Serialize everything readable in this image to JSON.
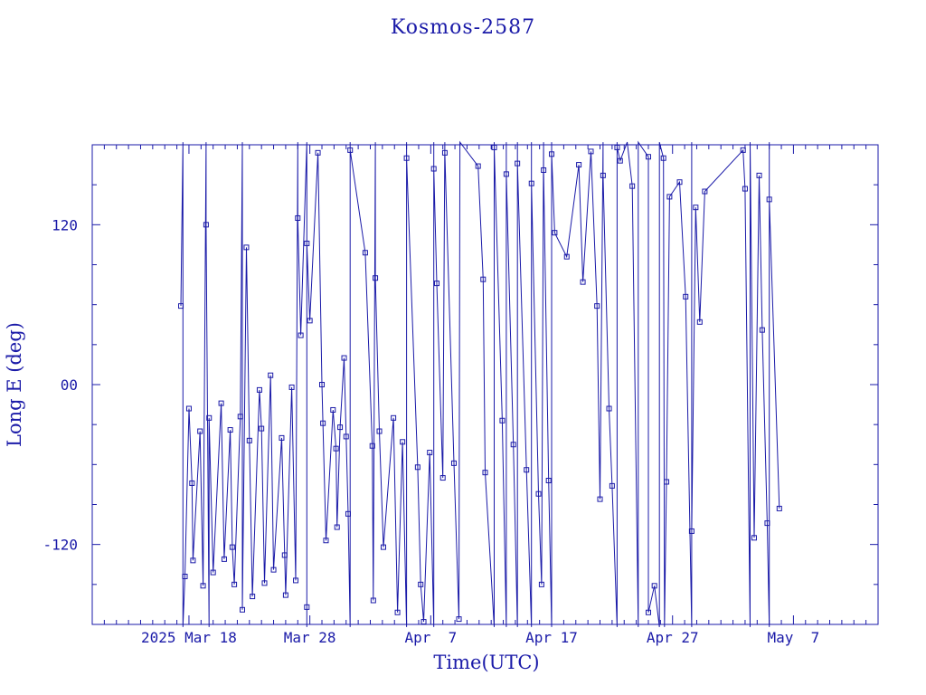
{
  "chart_data": {
    "type": "line",
    "title": "Kosmos-2587",
    "xlabel": "Time(UTC)",
    "ylabel": "Long E (deg)",
    "xlim": [
      "2025-03-10",
      "2025-05-14"
    ],
    "ylim": [
      -180,
      180
    ],
    "grid": false,
    "line_color": "#1a1aa8",
    "x_tick_labels": [
      {
        "date": "2025-03-18",
        "label": "2025 Mar 18"
      },
      {
        "date": "2025-03-28",
        "label": "Mar 28"
      },
      {
        "date": "2025-04-07",
        "label": "Apr  7"
      },
      {
        "date": "2025-04-17",
        "label": "Apr 17"
      },
      {
        "date": "2025-04-27",
        "label": "Apr 27"
      },
      {
        "date": "2025-05-07",
        "label": "May  7"
      }
    ],
    "y_tick_labels": [
      {
        "value": 120,
        "label": "120"
      },
      {
        "value": 0,
        "label": "00"
      },
      {
        "value": -120,
        "label": "-120"
      }
    ],
    "series": [
      {
        "points": [
          [
            "2025-03-17 08:00",
            59
          ],
          [
            "2025-03-17 12:00",
            182
          ],
          [
            "2025-03-17 12:00",
            -182
          ],
          [
            "2025-03-17 16:00",
            -144
          ],
          [
            "2025-03-18 00:00",
            -18
          ],
          [
            "2025-03-18 06:00",
            -74
          ],
          [
            "2025-03-18 08:00",
            -132
          ],
          [
            "2025-03-18 22:00",
            -35
          ],
          [
            "2025-03-19 04:00",
            -151
          ],
          [
            "2025-03-19 10:00",
            182
          ],
          [
            "2025-03-19 10:00",
            120
          ],
          [
            "2025-03-19 16:00",
            -182
          ],
          [
            "2025-03-19 16:00",
            -25
          ],
          [
            "2025-03-20 00:00",
            -141
          ],
          [
            "2025-03-20 16:00",
            -14
          ],
          [
            "2025-03-20 22:00",
            -131
          ],
          [
            "2025-03-21 10:00",
            -34
          ],
          [
            "2025-03-21 14:00",
            -122
          ],
          [
            "2025-03-21 18:00",
            -150
          ],
          [
            "2025-03-22 06:00",
            -24
          ],
          [
            "2025-03-22 10:00",
            182
          ],
          [
            "2025-03-22 10:00",
            -169
          ],
          [
            "2025-03-22 18:00",
            103
          ],
          [
            "2025-03-23 00:00",
            -42
          ],
          [
            "2025-03-23 06:00",
            -159
          ],
          [
            "2025-03-23 20:00",
            -4
          ],
          [
            "2025-03-24 00:00",
            -33
          ],
          [
            "2025-03-24 06:00",
            -149
          ],
          [
            "2025-03-24 18:00",
            7
          ],
          [
            "2025-03-25 00:00",
            -139
          ],
          [
            "2025-03-25 16:00",
            -40
          ],
          [
            "2025-03-25 22:00",
            -128
          ],
          [
            "2025-03-26 00:00",
            -158
          ],
          [
            "2025-03-26 12:00",
            -2
          ],
          [
            "2025-03-26 20:00",
            -147
          ],
          [
            "2025-03-27 00:00",
            182
          ],
          [
            "2025-03-27 00:00",
            125
          ],
          [
            "2025-03-27 06:00",
            37
          ],
          [
            "2025-03-27 18:00",
            182
          ],
          [
            "2025-03-27 18:00",
            -167
          ],
          [
            "2025-03-27 18:00",
            -182
          ],
          [
            "2025-03-27 18:00",
            106
          ],
          [
            "2025-03-28 00:00",
            48
          ],
          [
            "2025-03-28 16:00",
            174
          ],
          [
            "2025-03-29 00:00",
            0
          ],
          [
            "2025-03-29 02:00",
            -29
          ],
          [
            "2025-03-29 08:00",
            -117
          ],
          [
            "2025-03-29 22:00",
            -19
          ],
          [
            "2025-03-30 04:00",
            -48
          ],
          [
            "2025-03-30 06:00",
            -107
          ],
          [
            "2025-03-30 12:00",
            -32
          ],
          [
            "2025-03-30 20:00",
            20
          ],
          [
            "2025-03-31 00:00",
            -39
          ],
          [
            "2025-03-31 04:00",
            -97
          ],
          [
            "2025-03-31 08:00",
            -182
          ],
          [
            "2025-03-31 08:00",
            182
          ],
          [
            "2025-03-31 08:00",
            176
          ],
          [
            "2025-04-01 14:00",
            99
          ],
          [
            "2025-04-02 04:00",
            -46
          ],
          [
            "2025-04-02 06:00",
            -162
          ],
          [
            "2025-04-02 10:00",
            182
          ],
          [
            "2025-04-02 10:00",
            80
          ],
          [
            "2025-04-02 18:00",
            -35
          ],
          [
            "2025-04-03 02:00",
            -122
          ],
          [
            "2025-04-03 22:00",
            -25
          ],
          [
            "2025-04-04 06:00",
            -171
          ],
          [
            "2025-04-04 16:00",
            -43
          ],
          [
            "2025-04-05 00:00",
            -182
          ],
          [
            "2025-04-05 00:00",
            182
          ],
          [
            "2025-04-05 00:00",
            170
          ],
          [
            "2025-04-05 22:00",
            -62
          ],
          [
            "2025-04-06 04:00",
            -150
          ],
          [
            "2025-04-06 10:00",
            -178
          ],
          [
            "2025-04-06 22:00",
            -51
          ],
          [
            "2025-04-07 06:00",
            -182
          ],
          [
            "2025-04-07 06:00",
            182
          ],
          [
            "2025-04-07 06:00",
            162
          ],
          [
            "2025-04-07 12:00",
            76
          ],
          [
            "2025-04-08 00:00",
            -70
          ],
          [
            "2025-04-08 04:00",
            182
          ],
          [
            "2025-04-08 04:00",
            174
          ],
          [
            "2025-04-08 22:00",
            -59
          ],
          [
            "2025-04-09 08:00",
            -176
          ],
          [
            "2025-04-09 10:00",
            182
          ],
          [
            "2025-04-10 22:00",
            164
          ],
          [
            "2025-04-11 08:00",
            79
          ],
          [
            "2025-04-11 12:00",
            -66
          ],
          [
            "2025-04-12 06:00",
            -182
          ],
          [
            "2025-04-12 06:00",
            182
          ],
          [
            "2025-04-12 06:00",
            178
          ],
          [
            "2025-04-12 22:00",
            -27
          ],
          [
            "2025-04-13 06:00",
            -182
          ],
          [
            "2025-04-13 06:00",
            182
          ],
          [
            "2025-04-13 06:00",
            158
          ],
          [
            "2025-04-13 20:00",
            -45
          ],
          [
            "2025-04-14 04:00",
            -182
          ],
          [
            "2025-04-14 04:00",
            182
          ],
          [
            "2025-04-14 04:00",
            166
          ],
          [
            "2025-04-14 22:00",
            -64
          ],
          [
            "2025-04-15 08:00",
            -182
          ],
          [
            "2025-04-15 08:00",
            182
          ],
          [
            "2025-04-15 08:00",
            151
          ],
          [
            "2025-04-15 22:00",
            -82
          ],
          [
            "2025-04-16 04:00",
            -150
          ],
          [
            "2025-04-16 08:00",
            182
          ],
          [
            "2025-04-16 08:00",
            161
          ],
          [
            "2025-04-16 18:00",
            -72
          ],
          [
            "2025-04-17 00:00",
            -182
          ],
          [
            "2025-04-17 00:00",
            182
          ],
          [
            "2025-04-17 00:00",
            173
          ],
          [
            "2025-04-17 06:00",
            114
          ],
          [
            "2025-04-18 06:00",
            96
          ],
          [
            "2025-04-19 06:00",
            165
          ],
          [
            "2025-04-19 14:00",
            77
          ],
          [
            "2025-04-20 06:00",
            175
          ],
          [
            "2025-04-20 18:00",
            59
          ],
          [
            "2025-04-21 00:00",
            -86
          ],
          [
            "2025-04-21 06:00",
            182
          ],
          [
            "2025-04-21 06:00",
            157
          ],
          [
            "2025-04-21 18:00",
            -18
          ],
          [
            "2025-04-22 00:00",
            -76
          ],
          [
            "2025-04-22 10:00",
            -182
          ],
          [
            "2025-04-22 10:00",
            182
          ],
          [
            "2025-04-22 10:00",
            178
          ],
          [
            "2025-04-22 16:00",
            168
          ],
          [
            "2025-04-23 06:00",
            182
          ],
          [
            "2025-04-23 16:00",
            149
          ],
          [
            "2025-04-24 04:00",
            -182
          ],
          [
            "2025-04-24 04:00",
            182
          ],
          [
            "2025-04-25 00:00",
            171
          ],
          [
            "2025-04-25 00:00",
            -171
          ],
          [
            "2025-04-25 12:00",
            -151
          ],
          [
            "2025-04-25 22:00",
            -182
          ],
          [
            "2025-04-25 22:00",
            182
          ],
          [
            "2025-04-26 06:00",
            170
          ],
          [
            "2025-04-26 08:00",
            -182
          ],
          [
            "2025-04-26 12:00",
            -73
          ],
          [
            "2025-04-26 18:00",
            141
          ],
          [
            "2025-04-27 14:00",
            152
          ],
          [
            "2025-04-28 02:00",
            66
          ],
          [
            "2025-04-28 14:00",
            -182
          ],
          [
            "2025-04-28 14:00",
            182
          ],
          [
            "2025-04-28 14:00",
            -110
          ],
          [
            "2025-04-28 22:00",
            133
          ],
          [
            "2025-04-29 06:00",
            47
          ],
          [
            "2025-04-29 16:00",
            145
          ],
          [
            "2025-05-02 20:00",
            176
          ],
          [
            "2025-05-03 00:00",
            147
          ],
          [
            "2025-05-03 10:00",
            -182
          ],
          [
            "2025-05-03 10:00",
            182
          ],
          [
            "2025-05-03 18:00",
            -115
          ],
          [
            "2025-05-04 04:00",
            157
          ],
          [
            "2025-05-04 10:00",
            41
          ],
          [
            "2025-05-04 20:00",
            -104
          ],
          [
            "2025-05-05 00:00",
            -182
          ],
          [
            "2025-05-05 00:00",
            182
          ],
          [
            "2025-05-05 00:00",
            139
          ],
          [
            "2025-05-05 20:00",
            -93
          ]
        ]
      }
    ]
  }
}
